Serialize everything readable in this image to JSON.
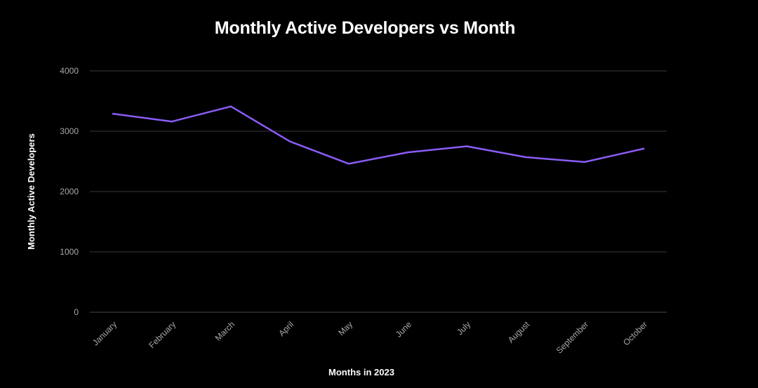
{
  "chart_data": {
    "type": "line",
    "title": "Monthly Active Developers vs Month",
    "xlabel": "Months in 2023",
    "ylabel": "Monthly Active Developers",
    "categories": [
      "January",
      "February",
      "March",
      "April",
      "May",
      "June",
      "July",
      "August",
      "September",
      "October"
    ],
    "series": [
      {
        "values": [
          3290,
          3160,
          3410,
          2830,
          2460,
          2650,
          2750,
          2570,
          2490,
          2710
        ],
        "color": "#8b5cf6"
      }
    ],
    "ylim": [
      0,
      4000
    ],
    "yticks": [
      0,
      1000,
      2000,
      3000,
      4000
    ],
    "grid": true,
    "background": "#000000",
    "grid_color": "#3a3a3a"
  }
}
